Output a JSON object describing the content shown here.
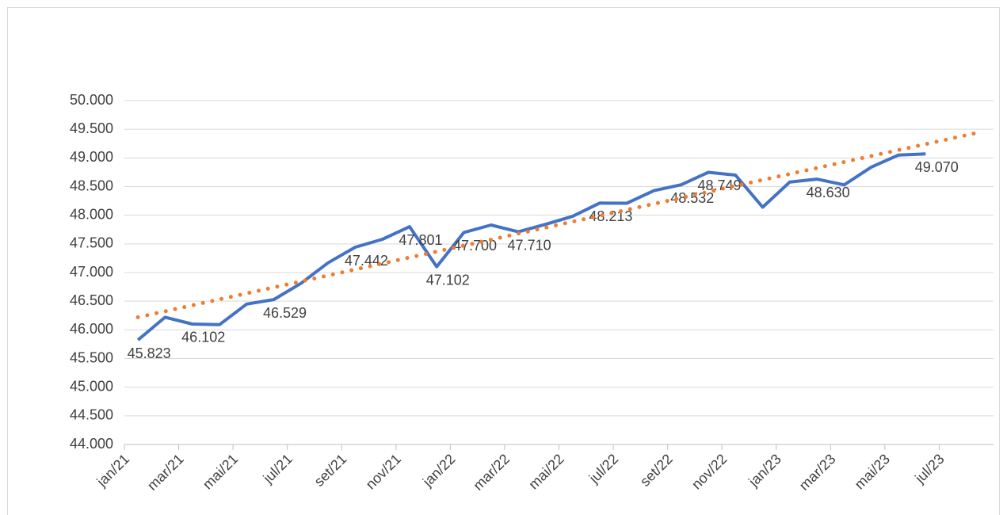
{
  "chart_data": {
    "type": "line",
    "categories": [
      "jan/21",
      null,
      "mar/21",
      null,
      "mai/21",
      null,
      "jul/21",
      null,
      "set/21",
      null,
      "nov/21",
      null,
      "jan/22",
      null,
      "mar/22",
      null,
      "mai/22",
      null,
      "jul/22",
      null,
      "set/22",
      null,
      "nov/22",
      null,
      "jan/23",
      null,
      "mar/23",
      null,
      "mai/23",
      null,
      "jul/23",
      null
    ],
    "series": [
      {
        "color": "#4472c4",
        "values": [
          45823,
          46220,
          46102,
          46090,
          46450,
          46529,
          46810,
          47170,
          47442,
          47580,
          47801,
          47102,
          47700,
          47830,
          47710,
          47840,
          47980,
          48213,
          48210,
          48430,
          48532,
          48749,
          48700,
          48140,
          48580,
          48630,
          48530,
          48840,
          49050,
          49070,
          null,
          null
        ],
        "value_labels": [
          "45.823",
          null,
          "46.102",
          null,
          null,
          "46.529",
          null,
          null,
          "47.442",
          null,
          "47.801",
          "47.102",
          "47.700",
          null,
          "47.710",
          null,
          null,
          "48.213",
          null,
          null,
          "48.532",
          "48.749",
          null,
          null,
          null,
          "48.630",
          null,
          null,
          null,
          "49.070",
          null,
          null
        ]
      },
      {
        "color": "#ed7d31",
        "style": "dotted",
        "values": [
          46220,
          46324,
          46428,
          46533,
          46637,
          46741,
          46845,
          46949,
          47054,
          47158,
          47262,
          47366,
          47470,
          47574,
          47679,
          47783,
          47887,
          47991,
          48095,
          48199,
          48304,
          48408,
          48512,
          48616,
          48720,
          48825,
          48929,
          49033,
          49137,
          49241,
          49345,
          49450
        ]
      }
    ],
    "ylim": [
      44000,
      50000
    ],
    "yticks": [
      {
        "value": 44000,
        "label": "44.000"
      },
      {
        "value": 44500,
        "label": "44.500"
      },
      {
        "value": 45000,
        "label": "45.000"
      },
      {
        "value": 45500,
        "label": "45.500"
      },
      {
        "value": 46000,
        "label": "46.000"
      },
      {
        "value": 46500,
        "label": "46.500"
      },
      {
        "value": 47000,
        "label": "47.000"
      },
      {
        "value": 47500,
        "label": "47.500"
      },
      {
        "value": 48000,
        "label": "48.000"
      },
      {
        "value": 48500,
        "label": "48.500"
      },
      {
        "value": 49000,
        "label": "49.000"
      },
      {
        "value": 49500,
        "label": "49.500"
      },
      {
        "value": 50000,
        "label": "50.000"
      }
    ],
    "grid": true
  }
}
